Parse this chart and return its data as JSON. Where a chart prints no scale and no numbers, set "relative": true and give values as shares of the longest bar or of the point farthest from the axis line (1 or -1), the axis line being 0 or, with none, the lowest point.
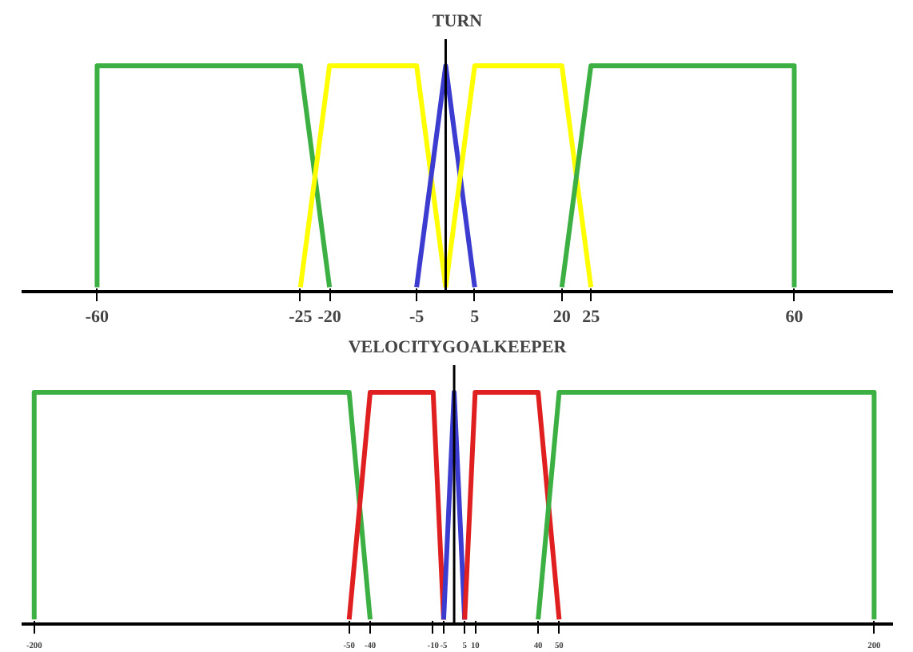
{
  "chart_data": [
    {
      "type": "line",
      "title": "TURN",
      "relative": true,
      "tick_labels": "x",
      "grid": false,
      "xlim": [
        -73,
        77
      ],
      "xticks": [
        -60,
        -25,
        -20,
        -5,
        5,
        20,
        25,
        60
      ],
      "series": [
        {
          "color": "#3cb043",
          "x": [
            -60,
            -60,
            -25,
            -20
          ],
          "values": [
            0,
            1,
            1,
            0
          ]
        },
        {
          "color": "#ffff00",
          "x": [
            -25,
            -20,
            -5,
            0
          ],
          "values": [
            0,
            1,
            1,
            0
          ]
        },
        {
          "color": "#3c3cd0",
          "x": [
            -5,
            0,
            5
          ],
          "values": [
            0,
            1,
            0
          ]
        },
        {
          "color": "#ffff00",
          "x": [
            0,
            5,
            20,
            25
          ],
          "values": [
            0,
            1,
            1,
            0
          ]
        },
        {
          "color": "#3cb043",
          "x": [
            20,
            25,
            60,
            60
          ],
          "values": [
            0,
            1,
            1,
            0
          ]
        }
      ]
    },
    {
      "type": "line",
      "title": "VELOCITYGOALKEEPER",
      "relative": true,
      "tick_labels": "x",
      "grid": false,
      "xlim": [
        -206,
        209
      ],
      "xticks": [
        -200,
        -50,
        -40,
        -10,
        -5,
        5,
        10,
        40,
        50,
        200
      ],
      "series": [
        {
          "color": "#3cb043",
          "x": [
            -200,
            -200,
            -50,
            -40
          ],
          "values": [
            0,
            1,
            1,
            0
          ]
        },
        {
          "color": "#e02020",
          "x": [
            -50,
            -40,
            -10,
            -5
          ],
          "values": [
            0,
            1,
            1,
            0
          ]
        },
        {
          "color": "#3c3cd0",
          "x": [
            -5,
            0,
            5
          ],
          "values": [
            0,
            1,
            0
          ]
        },
        {
          "color": "#e02020",
          "x": [
            5,
            10,
            40,
            50
          ],
          "values": [
            0,
            1,
            1,
            0
          ]
        },
        {
          "color": "#3cb043",
          "x": [
            40,
            50,
            200,
            200
          ],
          "values": [
            0,
            1,
            1,
            0
          ]
        }
      ]
    }
  ]
}
